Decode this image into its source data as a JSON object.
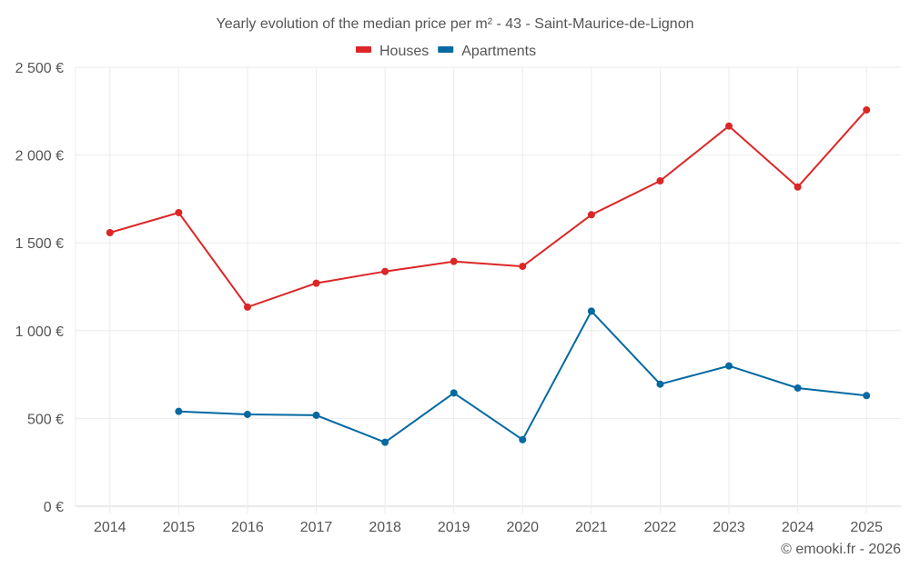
{
  "chart_data": {
    "type": "line",
    "title": "Yearly evolution of the median price per m² - 43 - Saint-Maurice-de-Lignon",
    "xlabel": "",
    "ylabel": "",
    "categories": [
      "2014",
      "2015",
      "2016",
      "2017",
      "2018",
      "2019",
      "2020",
      "2021",
      "2022",
      "2023",
      "2024",
      "2025"
    ],
    "ylim": [
      0,
      2500
    ],
    "yticks": [
      0,
      500,
      1000,
      1500,
      2000,
      2500
    ],
    "ytick_labels": [
      "0 €",
      "500 €",
      "1 000 €",
      "1 500 €",
      "2 000 €",
      "2 500 €"
    ],
    "grid": true,
    "legend_position": "top-center",
    "series": [
      {
        "name": "Houses",
        "color": "#dc2626",
        "values": [
          1558,
          1672,
          1134,
          1270,
          1337,
          1394,
          1366,
          1660,
          1853,
          2165,
          1818,
          2257
        ]
      },
      {
        "name": "Apartments",
        "color": "#0369a1",
        "values": [
          null,
          540,
          523,
          518,
          364,
          645,
          379,
          1111,
          695,
          799,
          673,
          630
        ]
      }
    ],
    "credit": "© emooki.fr - 2026"
  }
}
